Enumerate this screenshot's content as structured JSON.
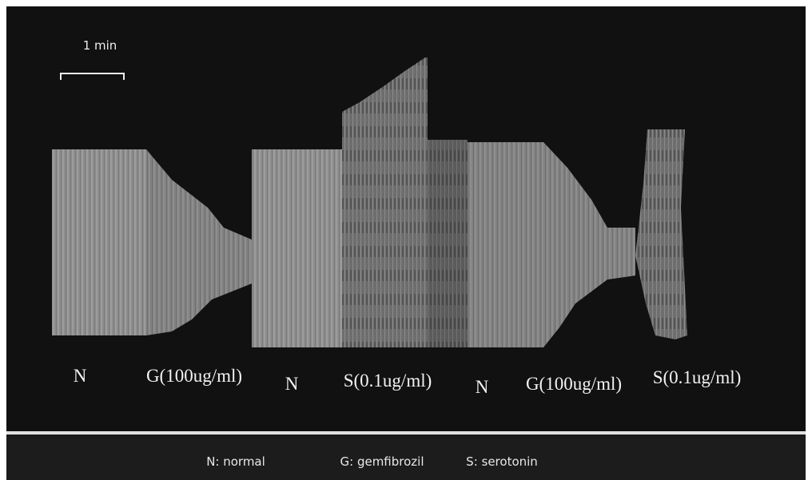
{
  "figure": {
    "scale_bar": {
      "label": "1 min"
    },
    "segment_labels": [
      "N",
      "G(100ug/ml)",
      "N",
      "S(0.1ug/ml)",
      "N",
      "G(100ug/ml)",
      "S(0.1ug/ml)"
    ],
    "legend": [
      "N: normal",
      "G: gemfibrozil",
      "S: serotonin"
    ]
  }
}
